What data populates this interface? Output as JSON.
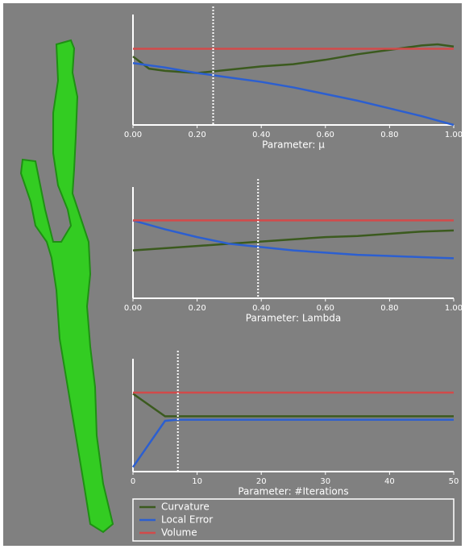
{
  "chart_data": [
    {
      "type": "line",
      "xlabel": "Parameter: μ",
      "xlim": [
        0,
        1
      ],
      "ylim": [
        0,
        1
      ],
      "xticks": [
        {
          "value": 0,
          "label": "0.00"
        },
        {
          "value": 0.2,
          "label": "0.20"
        },
        {
          "value": 0.4,
          "label": "0.40"
        },
        {
          "value": 0.6,
          "label": "0.60"
        },
        {
          "value": 0.8,
          "label": "0.80"
        },
        {
          "value": 1,
          "label": "1.00"
        }
      ],
      "marker_x": 0.25,
      "x": [
        0,
        0.05,
        0.1,
        0.2,
        0.3,
        0.4,
        0.5,
        0.6,
        0.7,
        0.8,
        0.9,
        0.95,
        1
      ],
      "series": [
        {
          "name": "Curvature",
          "color": "#3b5a1e",
          "values": [
            0.62,
            0.51,
            0.49,
            0.47,
            0.5,
            0.53,
            0.55,
            0.59,
            0.64,
            0.68,
            0.72,
            0.73,
            0.71
          ]
        },
        {
          "name": "Local Error",
          "color": "#2c5fd0",
          "values": [
            0.56,
            0.54,
            0.52,
            0.47,
            0.43,
            0.39,
            0.34,
            0.28,
            0.22,
            0.15,
            0.08,
            0.04,
            0
          ]
        },
        {
          "name": "Volume",
          "color": "#d24a4a",
          "values": [
            0.69,
            0.69,
            0.69,
            0.69,
            0.69,
            0.69,
            0.69,
            0.69,
            0.69,
            0.69,
            0.69,
            0.69,
            0.69
          ]
        }
      ]
    },
    {
      "type": "line",
      "xlabel": "Parameter: Lambda",
      "xlim": [
        0,
        1
      ],
      "ylim": [
        0,
        1
      ],
      "xticks": [
        {
          "value": 0,
          "label": "0.00"
        },
        {
          "value": 0.2,
          "label": "0.20"
        },
        {
          "value": 0.4,
          "label": "0.40"
        },
        {
          "value": 0.6,
          "label": "0.60"
        },
        {
          "value": 0.8,
          "label": "0.80"
        },
        {
          "value": 1,
          "label": "1.00"
        }
      ],
      "marker_x": 0.39,
      "x": [
        0,
        0.1,
        0.2,
        0.3,
        0.4,
        0.5,
        0.6,
        0.7,
        0.8,
        0.9,
        1
      ],
      "series": [
        {
          "name": "Curvature",
          "color": "#3b5a1e",
          "values": [
            0.43,
            0.45,
            0.47,
            0.49,
            0.51,
            0.53,
            0.55,
            0.56,
            0.58,
            0.6,
            0.61
          ]
        },
        {
          "name": "Local Error",
          "color": "#2c5fd0",
          "values": [
            0.7,
            0.62,
            0.55,
            0.49,
            0.46,
            0.43,
            0.41,
            0.39,
            0.38,
            0.37,
            0.36
          ]
        },
        {
          "name": "Volume",
          "color": "#d24a4a",
          "values": [
            0.7,
            0.7,
            0.7,
            0.7,
            0.7,
            0.7,
            0.7,
            0.7,
            0.7,
            0.7,
            0.7
          ]
        }
      ]
    },
    {
      "type": "line",
      "xlabel": "Parameter: #Iterations",
      "xlim": [
        0,
        50
      ],
      "ylim": [
        0,
        1
      ],
      "xticks": [
        0,
        10,
        20,
        30,
        40,
        50
      ],
      "marker_x": 7,
      "x": [
        0,
        5,
        7,
        10,
        20,
        30,
        40,
        50
      ],
      "series": [
        {
          "name": "Curvature",
          "color": "#3b5a1e",
          "values": [
            0.69,
            0.49,
            0.49,
            0.49,
            0.49,
            0.49,
            0.49,
            0.49
          ]
        },
        {
          "name": "Local Error",
          "color": "#2c5fd0",
          "values": [
            0.04,
            0.45,
            0.46,
            0.46,
            0.46,
            0.46,
            0.46,
            0.46
          ]
        },
        {
          "name": "Volume",
          "color": "#d24a4a",
          "values": [
            0.7,
            0.7,
            0.7,
            0.7,
            0.7,
            0.7,
            0.7,
            0.7
          ]
        }
      ]
    }
  ]
}
